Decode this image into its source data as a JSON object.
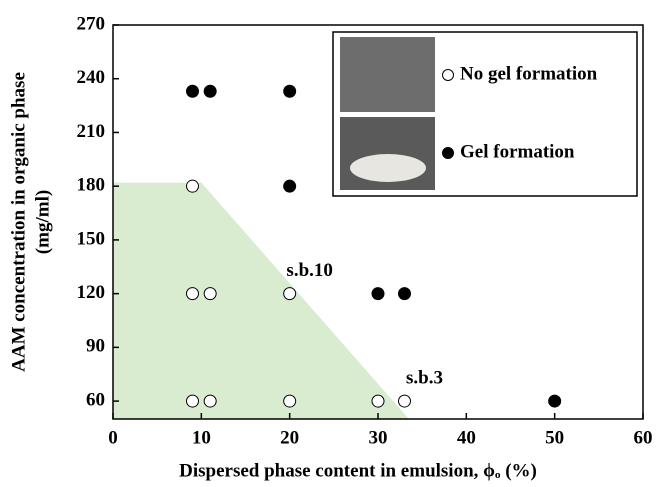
{
  "chart_data": {
    "type": "scatter",
    "x_label": "Dispersed phase content in emulsion, ϕₒ (%)",
    "y_label": [
      "AAM concentration in organic phase",
      "(mg/ml)"
    ],
    "xlim": [
      0,
      60
    ],
    "xticks": [
      0,
      10,
      20,
      30,
      40,
      50,
      60
    ],
    "ylim": [
      50,
      270
    ],
    "yticks": [
      60,
      90,
      120,
      150,
      180,
      210,
      240,
      270
    ],
    "series": [
      {
        "name": "No gel formation",
        "marker": "open",
        "color": "#000000",
        "x": [
          9,
          9,
          11,
          20,
          9,
          11,
          20,
          30,
          33
        ],
        "values": [
          180,
          120,
          120,
          120,
          60,
          60,
          60,
          60,
          60
        ]
      },
      {
        "name": "Gel formation",
        "marker": "filled",
        "color": "#000000",
        "x": [
          9,
          11,
          20,
          20,
          30,
          33,
          50
        ],
        "values": [
          233,
          233,
          233,
          180,
          120,
          120,
          60
        ]
      }
    ],
    "region": {
      "color": "#d9ecd0",
      "x": [
        0,
        10,
        33.5,
        0
      ],
      "values": [
        182,
        182,
        50,
        50
      ]
    },
    "annotations": [
      {
        "text": "s.b.10",
        "x": 20,
        "y": 120
      },
      {
        "text": "s.b.3",
        "x": 33,
        "y": 60
      }
    ]
  }
}
